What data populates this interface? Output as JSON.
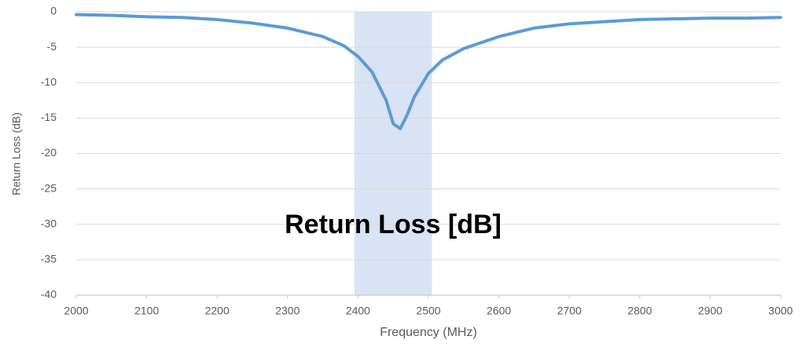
{
  "chart_data": {
    "type": "line",
    "annotation": "Return Loss [dB]",
    "x_label": "Frequency (MHz)",
    "y_label": "Return Loss (dB)",
    "shaded_range": [
      2395,
      2505
    ],
    "shade_color": "#dae3f3",
    "xlim": [
      2000,
      3000
    ],
    "xticks": [
      2000,
      2100,
      2200,
      2300,
      2400,
      2500,
      2600,
      2700,
      2800,
      2900,
      3000
    ],
    "ylim": [
      -40,
      0
    ],
    "yticks": [
      0,
      -5,
      -10,
      -15,
      -20,
      -25,
      -30,
      -35,
      -40
    ],
    "grid": true,
    "series": [
      {
        "color": "#5b9bd5",
        "x": [
          2000,
          2050,
          2100,
          2150,
          2200,
          2250,
          2300,
          2350,
          2380,
          2400,
          2420,
          2440,
          2450,
          2460,
          2470,
          2480,
          2500,
          2520,
          2550,
          2600,
          2650,
          2700,
          2750,
          2800,
          2850,
          2900,
          2950,
          3000
        ],
        "values": [
          -0.4,
          -0.5,
          -0.7,
          -0.8,
          -1.1,
          -1.6,
          -2.3,
          -3.5,
          -4.8,
          -6.3,
          -8.5,
          -12.5,
          -15.8,
          -16.5,
          -14.5,
          -12,
          -8.7,
          -6.8,
          -5.2,
          -3.5,
          -2.3,
          -1.7,
          -1.4,
          -1.1,
          -1.0,
          -0.9,
          -0.9,
          -0.8
        ]
      }
    ]
  }
}
